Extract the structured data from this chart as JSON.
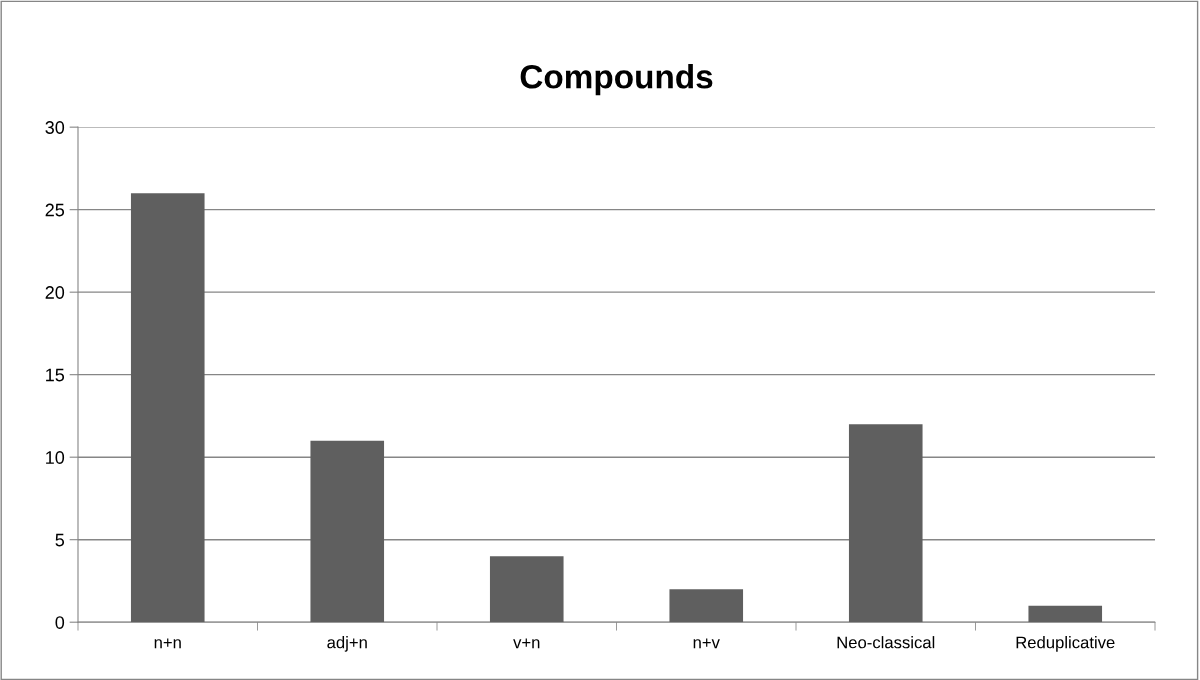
{
  "chart_data": {
    "type": "bar",
    "title": "Compounds",
    "categories": [
      "n+n",
      "adj+n",
      "v+n",
      "n+v",
      "Neo-classical",
      "Reduplicative"
    ],
    "values": [
      26,
      11,
      4,
      2,
      12,
      1
    ],
    "color": "#5f5f5f",
    "ylim": [
      0,
      30
    ],
    "yticks": [
      0,
      5,
      10,
      15,
      20,
      25,
      30
    ],
    "grid": "y",
    "legend": false
  }
}
